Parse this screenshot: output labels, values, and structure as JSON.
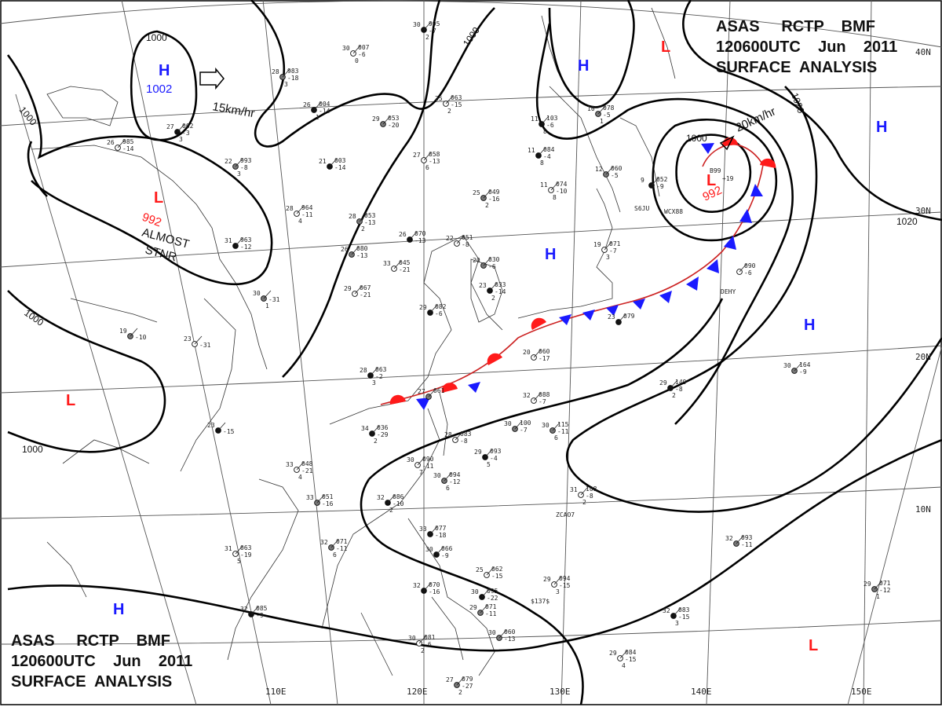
{
  "header": {
    "top_right": [
      "ASAS     RCTP    BMF",
      "120600UTC    Jun    2011",
      "SURFACE  ANALYSIS"
    ],
    "bottom_left": [
      "ASAS     RCTP    BMF",
      "120600UTC    Jun    2011",
      "SURFACE  ANALYSIS"
    ]
  },
  "longitude_labels": [
    "110E",
    "120E",
    "130E",
    "140E",
    "150E"
  ],
  "latitude_labels": [
    "40N",
    "30N",
    "20N",
    "10N"
  ],
  "isobar_labels": [
    "1000",
    "1000",
    "1000",
    "1000",
    "1000",
    "1000",
    "1020",
    "1020"
  ],
  "pressure_systems": [
    {
      "type": "H",
      "value": "1002"
    },
    {
      "type": "L",
      "value": "992"
    },
    {
      "type": "L",
      "value": "992"
    },
    {
      "type": "H",
      "value": ""
    },
    {
      "type": "H",
      "value": ""
    },
    {
      "type": "H",
      "value": ""
    },
    {
      "type": "H",
      "value": ""
    },
    {
      "type": "L",
      "value": ""
    },
    {
      "type": "L",
      "value": ""
    },
    {
      "type": "L",
      "value": ""
    },
    {
      "type": "H",
      "value": ""
    }
  ],
  "movement": [
    {
      "text": "15km/hr"
    },
    {
      "text": "20km/hr"
    }
  ],
  "notes": [
    "ALMOST",
    "STNR"
  ],
  "stations": [
    {
      "t": "30",
      "p": "995",
      "d": "-7",
      "x": "2"
    },
    {
      "t": "30",
      "p": "007",
      "d": "-6",
      "x": "0"
    },
    {
      "t": "28",
      "p": "983",
      "d": "-18",
      "x": "3"
    },
    {
      "t": "26",
      "p": "004",
      "d": "-14",
      "x": "1"
    },
    {
      "t": "25",
      "p": "063",
      "d": "-15",
      "x": "2"
    },
    {
      "t": "29",
      "p": "053",
      "d": "-20",
      "x": ""
    },
    {
      "t": "27",
      "p": "002",
      "d": "-3",
      "x": "3"
    },
    {
      "t": "26",
      "p": "985",
      "d": "-14",
      "x": ""
    },
    {
      "t": "22",
      "p": "993",
      "d": "-8",
      "x": "3"
    },
    {
      "t": "21",
      "p": "003",
      "d": "-14",
      "x": ""
    },
    {
      "t": "27",
      "p": "058",
      "d": "-13",
      "x": "6"
    },
    {
      "t": "25",
      "p": "049",
      "d": "-16",
      "x": "2"
    },
    {
      "t": "11",
      "p": "084",
      "d": "-4",
      "x": "8"
    },
    {
      "t": "11",
      "p": "074",
      "d": "-10",
      "x": "8"
    },
    {
      "t": "10",
      "p": "078",
      "d": "-5",
      "x": "1"
    },
    {
      "t": "11",
      "p": "103",
      "d": "-6",
      "x": "8"
    },
    {
      "t": "28",
      "p": "964",
      "d": "-11",
      "x": "4"
    },
    {
      "t": "28",
      "p": "053",
      "d": "-13",
      "x": "2"
    },
    {
      "t": "26",
      "p": "070",
      "d": "-13",
      "x": ""
    },
    {
      "t": "22",
      "p": "051",
      "d": "-8",
      "x": ""
    },
    {
      "t": "26",
      "p": "080",
      "d": "-13",
      "x": ""
    },
    {
      "t": "31",
      "p": "963",
      "d": "-12",
      "x": ""
    },
    {
      "t": "33",
      "p": "045",
      "d": "-21",
      "x": ""
    },
    {
      "t": "20",
      "p": "030",
      "d": "-6",
      "x": ""
    },
    {
      "t": "23",
      "p": "033",
      "d": "-14",
      "x": "2"
    },
    {
      "t": "29",
      "p": "067",
      "d": "-21",
      "x": ""
    },
    {
      "t": "30",
      "p": "",
      "d": "-31",
      "x": "1"
    },
    {
      "t": "29",
      "p": "082",
      "d": "-6",
      "x": ""
    },
    {
      "t": "19",
      "p": "071",
      "d": "-7",
      "x": "3"
    },
    {
      "t": "12",
      "p": "060",
      "d": "-5",
      "x": ""
    },
    {
      "t": "9",
      "p": "052",
      "d": "-9",
      "x": ""
    },
    {
      "t": "23",
      "p": "",
      "d": "-31",
      "x": ""
    },
    {
      "t": "19",
      "p": "",
      "d": "-10",
      "x": ""
    },
    {
      "t": "28",
      "p": "063",
      "d": "-2",
      "x": "3"
    },
    {
      "t": "20",
      "p": "060",
      "d": "-17",
      "x": ""
    },
    {
      "t": "27",
      "p": "061",
      "d": "",
      "x": ""
    },
    {
      "t": "23",
      "p": "079",
      "d": "",
      "x": ""
    },
    {
      "t": "",
      "p": "090",
      "d": "-6",
      "x": ""
    },
    {
      "t": "30",
      "p": "164",
      "d": "-9",
      "x": ""
    },
    {
      "t": "29",
      "p": "149",
      "d": "-8",
      "x": "2"
    },
    {
      "t": "32",
      "p": "088",
      "d": "-7",
      "x": ""
    },
    {
      "t": "30",
      "p": "115",
      "d": "-11",
      "x": "6"
    },
    {
      "t": "34",
      "p": "036",
      "d": "-29",
      "x": "2"
    },
    {
      "t": "28",
      "p": "083",
      "d": "-8",
      "x": ""
    },
    {
      "t": "30",
      "p": "100",
      "d": "-7",
      "x": ""
    },
    {
      "t": "29",
      "p": "093",
      "d": "-4",
      "x": "5"
    },
    {
      "t": "30",
      "p": "090",
      "d": "-11",
      "x": "7"
    },
    {
      "t": "30",
      "p": "094",
      "d": "-12",
      "x": "6"
    },
    {
      "t": "23",
      "p": "",
      "d": "-15",
      "x": ""
    },
    {
      "t": "33",
      "p": "048",
      "d": "-21",
      "x": "4"
    },
    {
      "t": "33",
      "p": "051",
      "d": "-16",
      "x": ""
    },
    {
      "t": "32",
      "p": "086",
      "d": "-10",
      "x": "2"
    },
    {
      "t": "31",
      "p": "108",
      "d": "-8",
      "x": "2"
    },
    {
      "t": "32",
      "p": "093",
      "d": "-11",
      "x": ""
    },
    {
      "t": "33",
      "p": "077",
      "d": "-18",
      "x": ""
    },
    {
      "t": "31",
      "p": "063",
      "d": "-19",
      "x": "5"
    },
    {
      "t": "32",
      "p": "071",
      "d": "-11",
      "x": "6"
    },
    {
      "t": "30",
      "p": "066",
      "d": "-9",
      "x": ""
    },
    {
      "t": "29",
      "p": "094",
      "d": "-15",
      "x": "3"
    },
    {
      "t": "29",
      "p": "071",
      "d": "-12",
      "x": "1"
    },
    {
      "t": "32",
      "p": "085",
      "d": "-9",
      "x": ""
    },
    {
      "t": "30",
      "p": "081",
      "d": "-6",
      "x": "2"
    },
    {
      "t": "30",
      "p": "060",
      "d": "-13",
      "x": ""
    },
    {
      "t": "32",
      "p": "083",
      "d": "-15",
      "x": "3"
    },
    {
      "t": "29",
      "p": "084",
      "d": "-15",
      "x": "4"
    },
    {
      "t": "27",
      "p": "079",
      "d": "-27",
      "x": "2"
    },
    {
      "t": "30",
      "p": "095",
      "d": "-22",
      "x": ""
    },
    {
      "t": "25",
      "p": "062",
      "d": "-15",
      "x": ""
    },
    {
      "t": "29",
      "p": "071",
      "d": "-11",
      "x": ""
    },
    {
      "t": "32",
      "p": "070",
      "d": "-16",
      "x": ""
    }
  ],
  "station_codes": [
    "S6JU",
    "WCX88",
    "DEHY",
    "ZCAO7",
    "$137$",
    "B99",
    "+19"
  ],
  "colors": {
    "high": "#1a1aff",
    "low": "#ff1a1a",
    "isobar": "#000000",
    "coast": "#333333"
  }
}
